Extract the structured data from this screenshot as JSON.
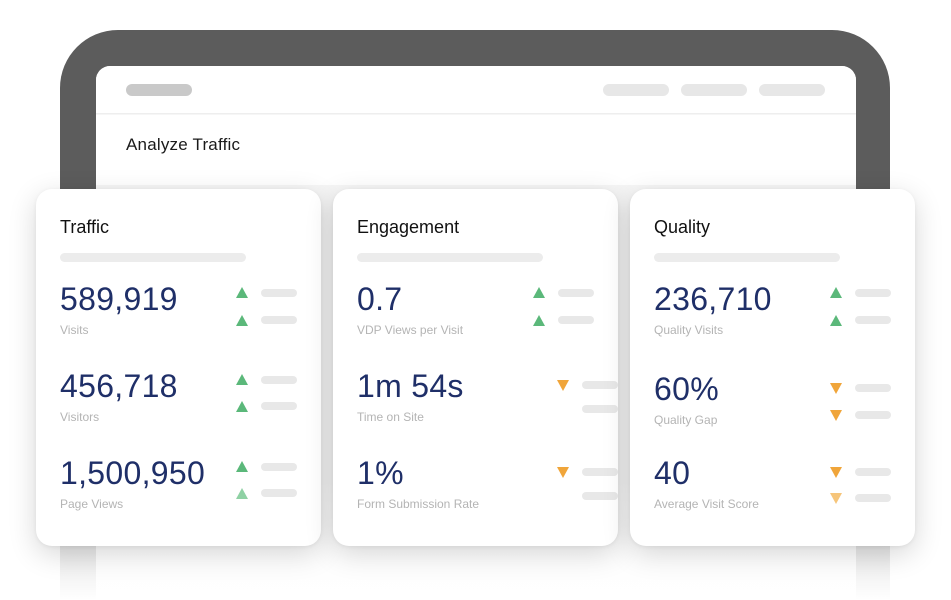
{
  "screen": {
    "title": "Analyze Traffic"
  },
  "colors": {
    "value_text": "#1f2f68",
    "trend_up": "#5bb87a",
    "trend_down": "#f0a53a",
    "device_frame": "#5c5c5c"
  },
  "cards": [
    {
      "title": "Traffic",
      "metrics": [
        {
          "value": "589,919",
          "label": "Visits",
          "trends": [
            "up",
            "up"
          ]
        },
        {
          "value": "456,718",
          "label": "Visitors",
          "trends": [
            "up",
            "up"
          ]
        },
        {
          "value": "1,500,950",
          "label": "Page Views",
          "trends": [
            "up",
            "up"
          ]
        }
      ]
    },
    {
      "title": "Engagement",
      "metrics": [
        {
          "value": "0.7",
          "label": "VDP Views per Visit",
          "trends": [
            "up",
            "up"
          ]
        },
        {
          "value": "1m 54s",
          "label": "Time on Site",
          "trends": [
            "down",
            "none"
          ]
        },
        {
          "value": "1%",
          "label": "Form Submission Rate",
          "trends": [
            "down",
            "none"
          ]
        }
      ]
    },
    {
      "title": "Quality",
      "metrics": [
        {
          "value": "236,710",
          "label": "Quality Visits",
          "trends": [
            "up",
            "up"
          ]
        },
        {
          "value": "60%",
          "label": "Quality Gap",
          "trends": [
            "down",
            "down"
          ]
        },
        {
          "value": "40",
          "label": "Average Visit Score",
          "trends": [
            "down",
            "down"
          ]
        }
      ]
    }
  ]
}
